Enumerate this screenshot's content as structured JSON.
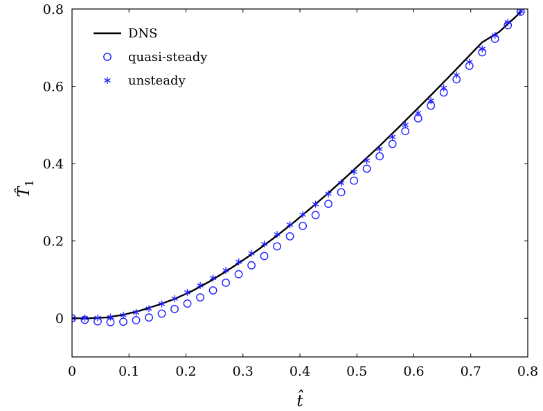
{
  "chart_data": {
    "type": "line",
    "title": "",
    "xlabel": "t̂",
    "ylabel_main": "T̂",
    "ylabel_sub": "1",
    "xlim": [
      0,
      0.8
    ],
    "ylim": [
      -0.1,
      0.8
    ],
    "xticks": [
      0,
      0.1,
      0.2,
      0.3,
      0.4,
      0.5,
      0.6,
      0.7,
      0.8
    ],
    "xtick_labels": [
      "0",
      "0.1",
      "0.2",
      "0.3",
      "0.4",
      "0.5",
      "0.6",
      "0.7",
      "0.8"
    ],
    "yticks": [
      0,
      0.2,
      0.4,
      0.6,
      0.8
    ],
    "ytick_labels": [
      "0",
      "0.2",
      "0.4",
      "0.6",
      "0.8"
    ],
    "grid": false,
    "legend_position": "top-left",
    "series": [
      {
        "name": "DNS",
        "style": "line",
        "color": "#000000",
        "x": [
          0,
          0.03,
          0.06,
          0.09,
          0.12,
          0.15,
          0.18,
          0.21,
          0.24,
          0.27,
          0.3,
          0.33,
          0.36,
          0.39,
          0.42,
          0.45,
          0.48,
          0.51,
          0.54,
          0.57,
          0.6,
          0.63,
          0.66,
          0.69,
          0.72,
          0.75,
          0.79
        ],
        "y": [
          0,
          0.0,
          0.002,
          0.009,
          0.02,
          0.034,
          0.05,
          0.07,
          0.094,
          0.121,
          0.15,
          0.181,
          0.214,
          0.249,
          0.286,
          0.324,
          0.364,
          0.405,
          0.446,
          0.489,
          0.533,
          0.577,
          0.622,
          0.668,
          0.714,
          0.741,
          0.795
        ]
      },
      {
        "name": "quasi-steady",
        "style": "circle",
        "color": "#1f1fff",
        "x": [
          0,
          0.0225,
          0.045,
          0.0675,
          0.09,
          0.1125,
          0.135,
          0.1575,
          0.18,
          0.2025,
          0.225,
          0.2475,
          0.27,
          0.2925,
          0.315,
          0.3375,
          0.36,
          0.3825,
          0.405,
          0.4275,
          0.45,
          0.4725,
          0.495,
          0.5175,
          0.54,
          0.5625,
          0.585,
          0.6075,
          0.63,
          0.6525,
          0.675,
          0.6975,
          0.72,
          0.7425,
          0.765,
          0.7875
        ],
        "y": [
          0,
          -0.004,
          -0.008,
          -0.01,
          -0.009,
          -0.005,
          0.002,
          0.012,
          0.024,
          0.038,
          0.054,
          0.072,
          0.092,
          0.114,
          0.137,
          0.161,
          0.186,
          0.212,
          0.239,
          0.267,
          0.296,
          0.326,
          0.356,
          0.387,
          0.419,
          0.451,
          0.484,
          0.517,
          0.55,
          0.584,
          0.618,
          0.653,
          0.688,
          0.723,
          0.758,
          0.793
        ]
      },
      {
        "name": "unsteady",
        "style": "asterisk",
        "color": "#1f1fff",
        "x": [
          0,
          0.0225,
          0.045,
          0.0675,
          0.09,
          0.1125,
          0.135,
          0.1575,
          0.18,
          0.2025,
          0.225,
          0.2475,
          0.27,
          0.2925,
          0.315,
          0.3375,
          0.36,
          0.3825,
          0.405,
          0.4275,
          0.45,
          0.4725,
          0.495,
          0.5175,
          0.54,
          0.5625,
          0.585,
          0.6075,
          0.63,
          0.6525,
          0.675,
          0.6975,
          0.72,
          0.7425,
          0.765,
          0.7875
        ],
        "y": [
          0,
          0.0,
          0.001,
          0.003,
          0.008,
          0.015,
          0.025,
          0.037,
          0.051,
          0.067,
          0.085,
          0.104,
          0.124,
          0.146,
          0.168,
          0.192,
          0.217,
          0.242,
          0.268,
          0.295,
          0.322,
          0.35,
          0.379,
          0.408,
          0.438,
          0.469,
          0.5,
          0.531,
          0.563,
          0.596,
          0.629,
          0.663,
          0.697,
          0.732,
          0.766,
          0.795
        ]
      }
    ]
  }
}
